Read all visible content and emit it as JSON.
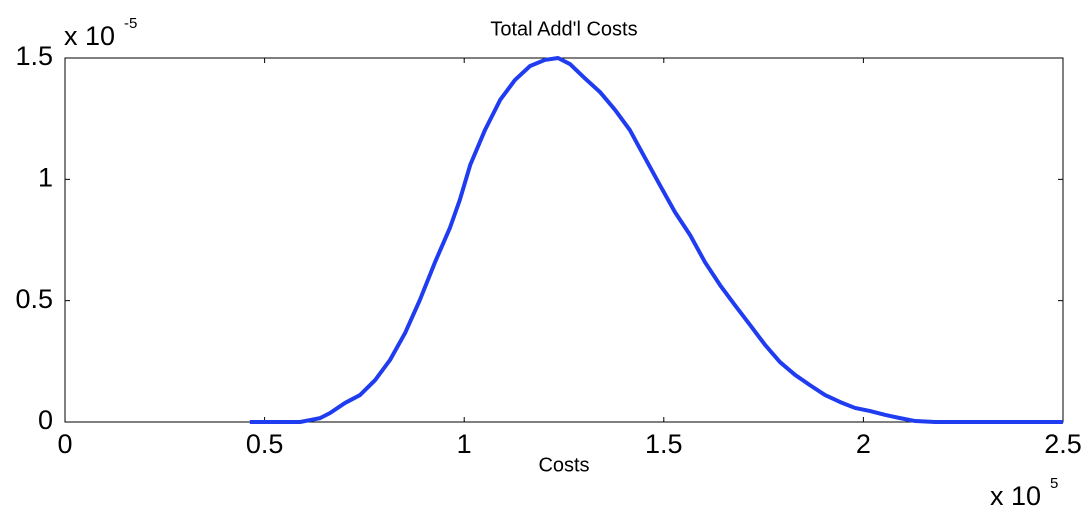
{
  "chart_data": {
    "type": "line",
    "title": "Total Add'l Costs",
    "xlabel": "Costs",
    "x_multiplier": {
      "base": "x 10",
      "exponent": "5"
    },
    "y_multiplier": {
      "base": "x 10",
      "exponent": "-5"
    },
    "xlim": [
      0,
      2.5
    ],
    "xticks": [
      0,
      0.5,
      1,
      1.5,
      2,
      2.5
    ],
    "ylim": [
      0,
      1.5
    ],
    "yticks": [
      0,
      0.5,
      1,
      1.5
    ],
    "grid": false,
    "series": [
      {
        "color": "#1f3cf0",
        "x": [
          0.463,
          0.589,
          0.614,
          0.639,
          0.664,
          0.701,
          0.739,
          0.777,
          0.814,
          0.852,
          0.889,
          0.927,
          0.964,
          0.989,
          1.015,
          1.052,
          1.09,
          1.127,
          1.165,
          1.202,
          1.235,
          1.265,
          1.302,
          1.34,
          1.378,
          1.415,
          1.453,
          1.49,
          1.528,
          1.566,
          1.603,
          1.641,
          1.678,
          1.716,
          1.754,
          1.791,
          1.829,
          1.866,
          1.904,
          1.942,
          1.979,
          2.017,
          2.055,
          2.092,
          2.13,
          2.18,
          2.5
        ],
        "values": [
          0,
          0,
          0.008,
          0.016,
          0.037,
          0.078,
          0.111,
          0.173,
          0.255,
          0.367,
          0.503,
          0.659,
          0.799,
          0.915,
          1.059,
          1.203,
          1.327,
          1.409,
          1.467,
          1.492,
          1.5,
          1.475,
          1.417,
          1.36,
          1.286,
          1.203,
          1.088,
          0.977,
          0.865,
          0.77,
          0.659,
          0.564,
          0.482,
          0.4,
          0.317,
          0.247,
          0.194,
          0.152,
          0.111,
          0.082,
          0.058,
          0.045,
          0.029,
          0.016,
          0.004,
          0,
          0
        ]
      }
    ]
  }
}
